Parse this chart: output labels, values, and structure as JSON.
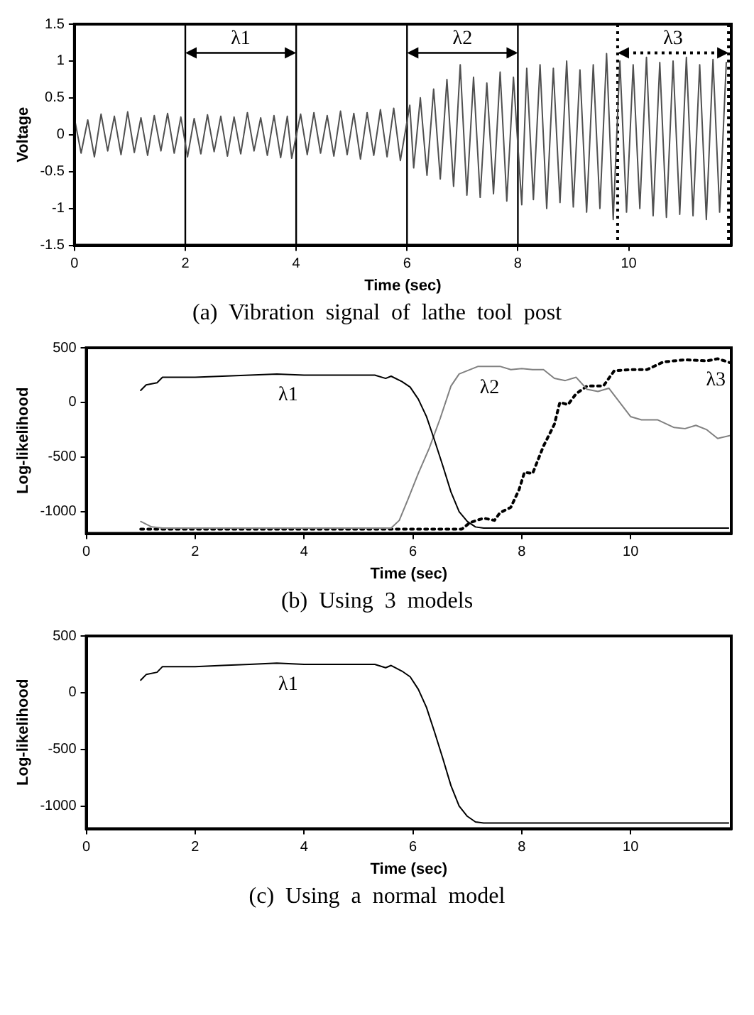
{
  "chart_data": [
    {
      "type": "line",
      "title": "(a) Vibration signal of lathe tool post",
      "xlabel": "Time (sec)",
      "ylabel": "Voltage",
      "xlim": [
        0,
        11.85
      ],
      "xticks": [
        0,
        2,
        4,
        6,
        8,
        10
      ],
      "ylim": [
        -1.5,
        1.5
      ],
      "yticks": [
        -1.5,
        -1,
        -0.5,
        0,
        0.5,
        1,
        1.5
      ],
      "grid": false,
      "x": [
        0,
        0.12,
        0.24,
        0.36,
        0.48,
        0.6,
        0.72,
        0.84,
        0.96,
        1.08,
        1.2,
        1.32,
        1.44,
        1.56,
        1.68,
        1.8,
        1.92,
        2.04,
        2.16,
        2.28,
        2.4,
        2.52,
        2.64,
        2.76,
        2.88,
        3,
        3.12,
        3.24,
        3.36,
        3.48,
        3.6,
        3.72,
        3.84,
        3.92,
        4.08,
        4.2,
        4.32,
        4.44,
        4.56,
        4.68,
        4.8,
        4.92,
        5.04,
        5.16,
        5.28,
        5.4,
        5.52,
        5.64,
        5.76,
        5.88,
        6.05,
        6.12,
        6.24,
        6.36,
        6.48,
        6.6,
        6.72,
        6.84,
        6.96,
        7.08,
        7.2,
        7.32,
        7.44,
        7.56,
        7.68,
        7.8,
        7.92,
        8.07,
        8.16,
        8.28,
        8.4,
        8.52,
        8.64,
        8.76,
        8.88,
        9,
        9.12,
        9.24,
        9.36,
        9.48,
        9.6,
        9.72,
        9.84,
        9.96,
        10.08,
        10.2,
        10.32,
        10.44,
        10.56,
        10.68,
        10.8,
        10.92,
        11.04,
        11.16,
        11.28,
        11.4,
        11.52,
        11.64,
        11.76
      ],
      "series": [
        {
          "color": "#505050",
          "values": [
            0.22,
            -0.25,
            0.2,
            -0.3,
            0.28,
            -0.22,
            0.25,
            -0.27,
            0.31,
            -0.24,
            0.23,
            -0.28,
            0.26,
            -0.22,
            0.29,
            -0.25,
            0.24,
            -0.3,
            0.22,
            -0.26,
            0.27,
            -0.23,
            0.25,
            -0.29,
            0.24,
            -0.26,
            0.3,
            -0.22,
            0.23,
            -0.28,
            0.26,
            -0.31,
            0.25,
            -0.32,
            0.28,
            -0.27,
            0.3,
            -0.25,
            0.26,
            -0.29,
            0.32,
            -0.27,
            0.29,
            -0.33,
            0.3,
            -0.28,
            0.34,
            -0.3,
            0.36,
            -0.35,
            0.4,
            -0.45,
            0.5,
            -0.55,
            0.62,
            -0.6,
            0.75,
            -0.7,
            0.95,
            -0.82,
            0.78,
            -0.85,
            0.7,
            -0.8,
            0.85,
            -0.9,
            0.78,
            -0.95,
            0.9,
            -0.88,
            0.95,
            -1,
            0.9,
            -0.92,
            1,
            -0.98,
            0.88,
            -1.05,
            0.95,
            -1,
            1.1,
            -1.15,
            1,
            -1.05,
            0.95,
            -1,
            1.05,
            -1.1,
            0.98,
            -1.12,
            1,
            -1.08,
            1.05,
            -1.1,
            0.95,
            -1.15,
            1.02,
            -1.05,
            0.98
          ]
        }
      ],
      "ref_lines": [
        {
          "axis": "x",
          "value": 2
        },
        {
          "axis": "x",
          "value": 4
        },
        {
          "axis": "x",
          "value": 6
        },
        {
          "axis": "x",
          "value": 8
        },
        {
          "axis": "x",
          "value": 9.8,
          "line_style": "dotted"
        },
        {
          "axis": "x",
          "value": 11.8,
          "line_style": "dotted"
        }
      ],
      "annotations": [
        "λ1",
        "λ2",
        "λ3"
      ]
    },
    {
      "type": "line",
      "title": "(b) Using 3 models",
      "xlabel": "Time (sec)",
      "ylabel": "Log-likelihood",
      "xlim": [
        0,
        11.85
      ],
      "xticks": [
        0,
        2,
        4,
        6,
        8,
        10
      ],
      "ylim": [
        -1200,
        500
      ],
      "yticks": [
        -1000,
        -500,
        0,
        500
      ],
      "grid": false,
      "series": [
        {
          "name": "λ1",
          "color": "#000000",
          "x": [
            1,
            1.1,
            1.3,
            1.4,
            2,
            2.5,
            3,
            3.5,
            4,
            4.5,
            5,
            5.3,
            5.5,
            5.6,
            5.8,
            5.95,
            6.1,
            6.25,
            6.4,
            6.55,
            6.7,
            6.85,
            7,
            7.15,
            7.3,
            11.8
          ],
          "values": [
            110,
            160,
            180,
            230,
            230,
            240,
            250,
            260,
            250,
            250,
            250,
            250,
            220,
            240,
            190,
            140,
            30,
            -130,
            -350,
            -580,
            -820,
            -1000,
            -1090,
            -1140,
            -1150,
            -1150
          ]
        },
        {
          "name": "λ2",
          "color": "#808080",
          "x": [
            1,
            1.2,
            1.4,
            5.6,
            5.75,
            5.9,
            6.1,
            6.3,
            6.5,
            6.7,
            6.85,
            7.2,
            7.6,
            7.8,
            8,
            8.2,
            8.4,
            8.6,
            8.8,
            9,
            9.2,
            9.4,
            9.6,
            9.8,
            10,
            10.2,
            10.5,
            10.8,
            11,
            11.2,
            11.4,
            11.6,
            11.85
          ],
          "values": [
            -1090,
            -1140,
            -1150,
            -1150,
            -1080,
            -900,
            -650,
            -420,
            -150,
            150,
            260,
            330,
            330,
            300,
            310,
            300,
            300,
            220,
            200,
            230,
            120,
            100,
            130,
            0,
            -130,
            -160,
            -160,
            -230,
            -240,
            -210,
            -250,
            -330,
            -300
          ]
        },
        {
          "name": "λ3",
          "color": "#000000",
          "line_style": "dotted",
          "x": [
            1,
            6.9,
            7.05,
            7.3,
            7.5,
            7.6,
            7.8,
            7.95,
            8.05,
            8.2,
            8.4,
            8.6,
            8.7,
            8.85,
            9,
            9.2,
            9.5,
            9.7,
            10,
            10.3,
            10.6,
            11,
            11.4,
            11.6,
            11.85
          ],
          "values": [
            -1160,
            -1160,
            -1100,
            -1060,
            -1080,
            -1010,
            -960,
            -800,
            -640,
            -650,
            -400,
            -200,
            0,
            -20,
            80,
            150,
            150,
            290,
            300,
            300,
            370,
            390,
            380,
            400,
            360
          ]
        }
      ],
      "legend": false
    },
    {
      "type": "line",
      "title": "(c) Using a normal model",
      "xlabel": "Time (sec)",
      "ylabel": "Log-likelihood",
      "xlim": [
        0,
        11.85
      ],
      "xticks": [
        0,
        2,
        4,
        6,
        8,
        10
      ],
      "ylim": [
        -1200,
        500
      ],
      "yticks": [
        -1000,
        -500,
        0,
        500
      ],
      "grid": false,
      "series": [
        {
          "name": "λ1",
          "color": "#000000",
          "x": [
            1,
            1.1,
            1.3,
            1.4,
            2,
            2.5,
            3,
            3.5,
            4,
            4.5,
            5,
            5.3,
            5.5,
            5.6,
            5.8,
            5.95,
            6.1,
            6.25,
            6.4,
            6.55,
            6.7,
            6.85,
            7,
            7.15,
            7.3,
            11.8
          ],
          "values": [
            110,
            160,
            180,
            230,
            230,
            240,
            250,
            260,
            250,
            250,
            250,
            250,
            220,
            240,
            190,
            140,
            30,
            -130,
            -350,
            -580,
            -820,
            -1000,
            -1090,
            -1140,
            -1150,
            -1150
          ]
        }
      ],
      "legend": false
    }
  ]
}
